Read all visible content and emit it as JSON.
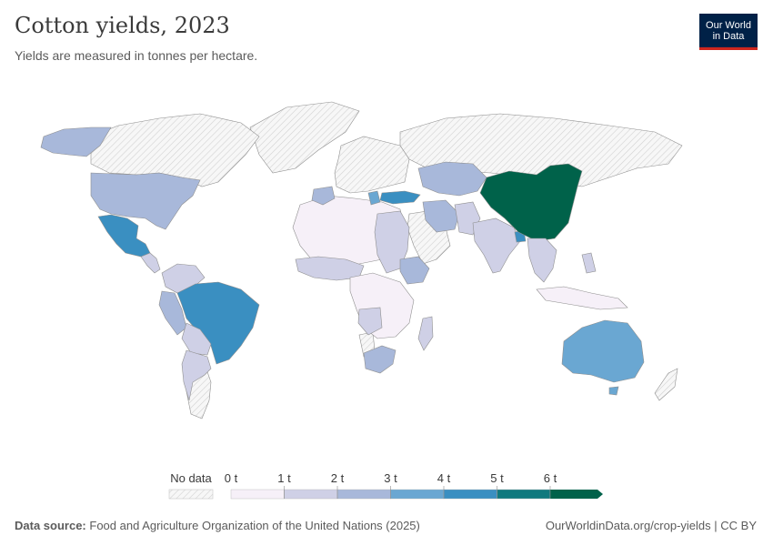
{
  "header": {
    "title": "Cotton yields, 2023",
    "subtitle": "Yields are measured in tonnes per hectare.",
    "logo_line1": "Our World",
    "logo_line2": "in Data"
  },
  "colors": {
    "no_data": "#f2f2f2",
    "bins": [
      "#f6f0f8",
      "#cfd0e6",
      "#a8b8da",
      "#6aa7d2",
      "#3a8fc1",
      "#10797e",
      "#00624a"
    ],
    "logo_bg": "#002147",
    "logo_accent": "#ce261e"
  },
  "legend": {
    "no_data_label": "No data",
    "ticks": [
      "0 t",
      "1 t",
      "2 t",
      "3 t",
      "4 t",
      "5 t",
      "6 t"
    ]
  },
  "footer": {
    "source_label": "Data source:",
    "source_text": "Food and Agriculture Organization of the United Nations (2025)",
    "url": "OurWorldinData.org/crop-yields | CC BY"
  }
}
